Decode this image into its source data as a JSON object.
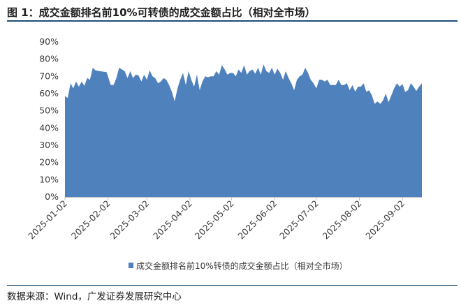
{
  "figure": {
    "title": "图 1：成交金额排名前10%可转债的成交金额占比（相对全市场）",
    "source": "数据来源：Wind，广发证券发展研究中心"
  },
  "colors": {
    "area": "#4f81bd",
    "axis": "#bfbfbf",
    "rule": "#1f4e79"
  },
  "chart_data": {
    "type": "area",
    "title": "图 1：成交金额排名前10%可转债的成交金额占比（相对全市场）",
    "xlabel": "",
    "ylabel": "",
    "ylim": [
      0,
      90
    ],
    "y_unit": "%",
    "yticks": [
      "0%",
      "10%",
      "20%",
      "30%",
      "40%",
      "50%",
      "60%",
      "70%",
      "80%",
      "90%"
    ],
    "xticks": [
      "2025-01-02",
      "2025-02-02",
      "2025-03-02",
      "2025-04-02",
      "2025-05-02",
      "2025-06-02",
      "2025-07-02",
      "2025-08-02",
      "2025-09-02"
    ],
    "grid": false,
    "legend_position": "bottom",
    "series": [
      {
        "name": "成交金额排名前10%转债的成交金额占比（相对全市场）",
        "values": [
          [
            "2025-01-02",
            58.5
          ],
          [
            "2025-01-04",
            57.5
          ],
          [
            "2025-01-06",
            66
          ],
          [
            "2025-01-08",
            63
          ],
          [
            "2025-01-10",
            67
          ],
          [
            "2025-01-12",
            64
          ],
          [
            "2025-01-14",
            67
          ],
          [
            "2025-01-16",
            64.5
          ],
          [
            "2025-01-18",
            69
          ],
          [
            "2025-01-20",
            68
          ],
          [
            "2025-01-22",
            75
          ],
          [
            "2025-01-24",
            73.5
          ],
          [
            "2025-01-27",
            73
          ],
          [
            "2025-02-01",
            72.5
          ],
          [
            "2025-02-04",
            65
          ],
          [
            "2025-02-06",
            65
          ],
          [
            "2025-02-08",
            69
          ],
          [
            "2025-02-10",
            75
          ],
          [
            "2025-02-12",
            74
          ],
          [
            "2025-02-14",
            73
          ],
          [
            "2025-02-16",
            69
          ],
          [
            "2025-02-18",
            73
          ],
          [
            "2025-02-20",
            69
          ],
          [
            "2025-02-22",
            71
          ],
          [
            "2025-02-24",
            70.5
          ],
          [
            "2025-02-26",
            67
          ],
          [
            "2025-02-28",
            71
          ],
          [
            "2025-03-02",
            68
          ],
          [
            "2025-03-04",
            73.5
          ],
          [
            "2025-03-06",
            70
          ],
          [
            "2025-03-08",
            69
          ],
          [
            "2025-03-10",
            66
          ],
          [
            "2025-03-12",
            67
          ],
          [
            "2025-03-14",
            69
          ],
          [
            "2025-03-16",
            68
          ],
          [
            "2025-03-18",
            65
          ],
          [
            "2025-03-20",
            61
          ],
          [
            "2025-03-22",
            55.5
          ],
          [
            "2025-03-24",
            63
          ],
          [
            "2025-03-26",
            68
          ],
          [
            "2025-03-28",
            72
          ],
          [
            "2025-03-30",
            65
          ],
          [
            "2025-04-01",
            73
          ],
          [
            "2025-04-03",
            68
          ],
          [
            "2025-04-05",
            64
          ],
          [
            "2025-04-07",
            71
          ],
          [
            "2025-04-09",
            62
          ],
          [
            "2025-04-11",
            67
          ],
          [
            "2025-04-13",
            70
          ],
          [
            "2025-04-15",
            69.5
          ],
          [
            "2025-04-17",
            70
          ],
          [
            "2025-04-19",
            70
          ],
          [
            "2025-04-21",
            73
          ],
          [
            "2025-04-23",
            71
          ],
          [
            "2025-04-25",
            76.5
          ],
          [
            "2025-04-27",
            74
          ],
          [
            "2025-04-29",
            71
          ],
          [
            "2025-05-01",
            72
          ],
          [
            "2025-05-03",
            72
          ],
          [
            "2025-05-05",
            70
          ],
          [
            "2025-05-07",
            74
          ],
          [
            "2025-05-09",
            72
          ],
          [
            "2025-05-11",
            76.5
          ],
          [
            "2025-05-13",
            71
          ],
          [
            "2025-05-15",
            73
          ],
          [
            "2025-05-17",
            74
          ],
          [
            "2025-05-19",
            71.5
          ],
          [
            "2025-05-21",
            75
          ],
          [
            "2025-05-23",
            71
          ],
          [
            "2025-05-25",
            77
          ],
          [
            "2025-05-27",
            73
          ],
          [
            "2025-05-29",
            72
          ],
          [
            "2025-05-31",
            75
          ],
          [
            "2025-06-02",
            71
          ],
          [
            "2025-06-04",
            74.5
          ],
          [
            "2025-06-06",
            72
          ],
          [
            "2025-06-08",
            68
          ],
          [
            "2025-06-10",
            73
          ],
          [
            "2025-06-12",
            69
          ],
          [
            "2025-06-14",
            66
          ],
          [
            "2025-06-16",
            62
          ],
          [
            "2025-06-18",
            68
          ],
          [
            "2025-06-20",
            70
          ],
          [
            "2025-06-22",
            71
          ],
          [
            "2025-06-24",
            75
          ],
          [
            "2025-06-26",
            72
          ],
          [
            "2025-06-28",
            68
          ],
          [
            "2025-06-30",
            66
          ],
          [
            "2025-07-02",
            63
          ],
          [
            "2025-07-04",
            68
          ],
          [
            "2025-07-06",
            68
          ],
          [
            "2025-07-08",
            67
          ],
          [
            "2025-07-10",
            68
          ],
          [
            "2025-07-12",
            65
          ],
          [
            "2025-07-14",
            65
          ],
          [
            "2025-07-16",
            65
          ],
          [
            "2025-07-18",
            68
          ],
          [
            "2025-07-20",
            65
          ],
          [
            "2025-07-22",
            65
          ],
          [
            "2025-07-24",
            66
          ],
          [
            "2025-07-26",
            62
          ],
          [
            "2025-07-28",
            65
          ],
          [
            "2025-07-30",
            61
          ],
          [
            "2025-08-01",
            64
          ],
          [
            "2025-08-03",
            64
          ],
          [
            "2025-08-05",
            66
          ],
          [
            "2025-08-07",
            61
          ],
          [
            "2025-08-09",
            62
          ],
          [
            "2025-08-11",
            59
          ],
          [
            "2025-08-13",
            54
          ],
          [
            "2025-08-15",
            55.5
          ],
          [
            "2025-08-17",
            54
          ],
          [
            "2025-08-19",
            56
          ],
          [
            "2025-08-21",
            60
          ],
          [
            "2025-08-23",
            55
          ],
          [
            "2025-08-25",
            59
          ],
          [
            "2025-08-27",
            63
          ],
          [
            "2025-08-29",
            66
          ],
          [
            "2025-08-31",
            64
          ],
          [
            "2025-09-02",
            65.5
          ],
          [
            "2025-09-04",
            61
          ],
          [
            "2025-09-06",
            62
          ],
          [
            "2025-09-08",
            66
          ],
          [
            "2025-09-10",
            64
          ],
          [
            "2025-09-12",
            61.5
          ],
          [
            "2025-09-14",
            64
          ],
          [
            "2025-09-16",
            66
          ]
        ]
      }
    ]
  }
}
